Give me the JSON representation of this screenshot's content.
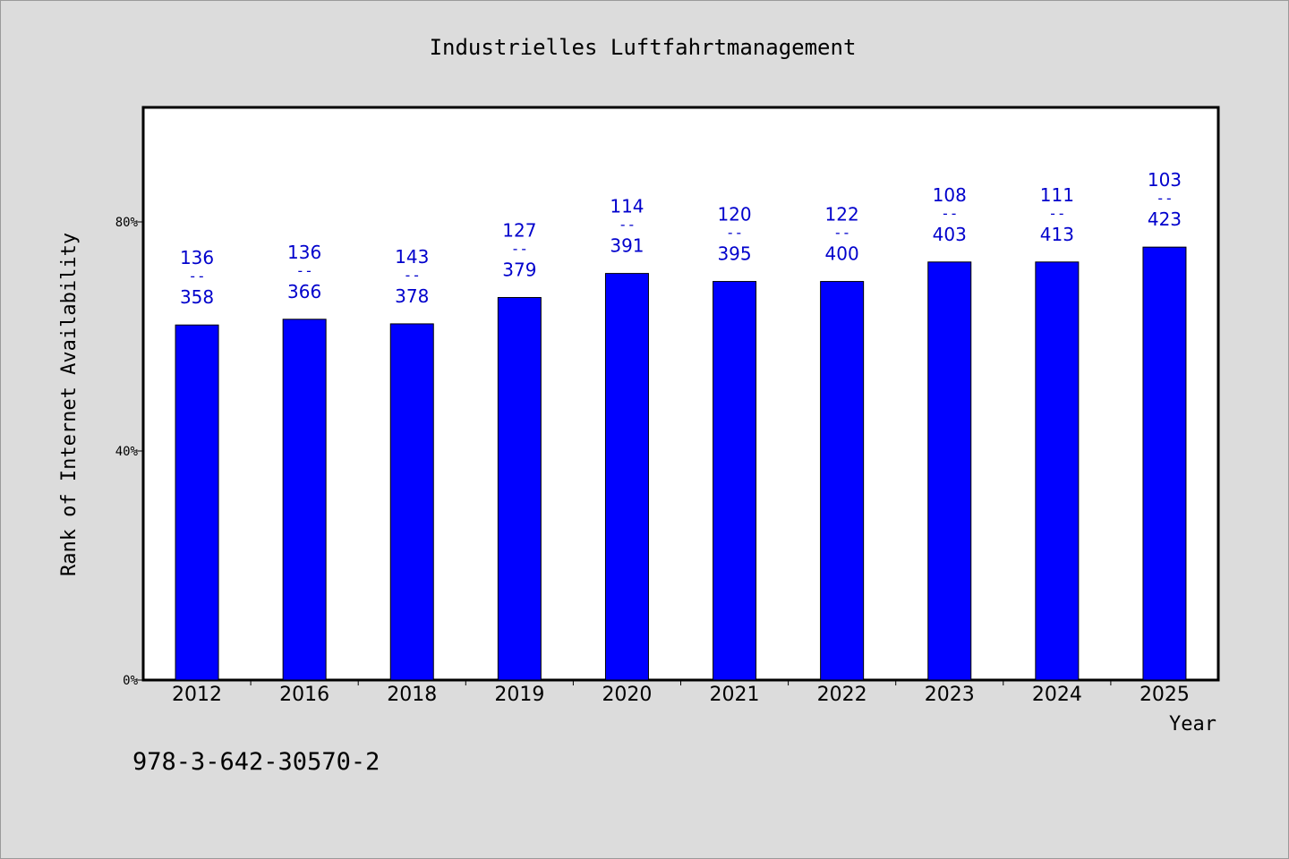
{
  "chart_data": {
    "type": "bar",
    "title": "Industrielles Luftfahrtmanagement",
    "xlabel": "Year",
    "ylabel": "Rank of Internet Availability",
    "categories": [
      "2012",
      "2016",
      "2018",
      "2019",
      "2020",
      "2021",
      "2022",
      "2023",
      "2024",
      "2025"
    ],
    "series": [
      {
        "values": [
          62,
          63,
          62.2,
          66.8,
          71,
          69.6,
          69.6,
          73,
          73,
          75.6
        ],
        "color": "#0000ff"
      }
    ],
    "data_labels": [
      {
        "top": "136",
        "sep": "--",
        "bottom": "358"
      },
      {
        "top": "136",
        "sep": "--",
        "bottom": "366"
      },
      {
        "top": "143",
        "sep": "--",
        "bottom": "378"
      },
      {
        "top": "127",
        "sep": "--",
        "bottom": "379"
      },
      {
        "top": "114",
        "sep": "--",
        "bottom": "391"
      },
      {
        "top": "120",
        "sep": "--",
        "bottom": "395"
      },
      {
        "top": "122",
        "sep": "--",
        "bottom": "400"
      },
      {
        "top": "108",
        "sep": "--",
        "bottom": "403"
      },
      {
        "top": "111",
        "sep": "--",
        "bottom": "413"
      },
      {
        "top": "103",
        "sep": "--",
        "bottom": "423"
      }
    ],
    "ylim": [
      0,
      100
    ],
    "yticks": [
      0,
      40,
      80
    ],
    "ytick_labels": [
      "0%",
      "40%",
      "80%"
    ],
    "grid": false,
    "legend": "none",
    "plot_background": "#ffffff",
    "label_color": "#0000cc"
  },
  "footer": {
    "isbn": "978-3-642-30570-2"
  }
}
